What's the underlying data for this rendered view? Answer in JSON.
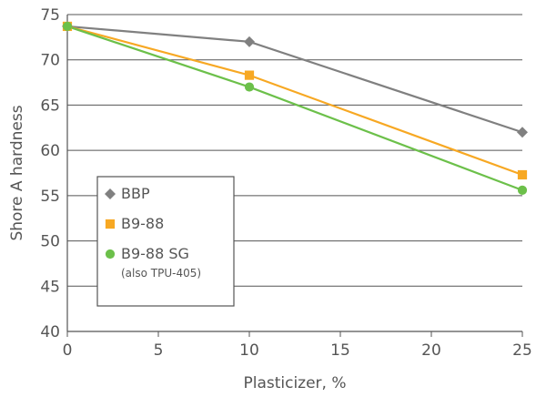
{
  "chart_data": {
    "type": "line",
    "title": "",
    "xlabel": "Plasticizer, %",
    "ylabel": "Shore A hardness",
    "xlim": [
      0,
      25
    ],
    "ylim": [
      40,
      75
    ],
    "x_ticks": [
      "0",
      "5",
      "10",
      "15",
      "20",
      "25"
    ],
    "y_ticks": [
      "40",
      "45",
      "50",
      "55",
      "60",
      "65",
      "70",
      "75"
    ],
    "grid": "horizontal",
    "legend_placement": "lower-left",
    "series": [
      {
        "name": "BBP",
        "note": "",
        "color": "#808080",
        "marker": "diamond",
        "x": [
          0,
          10,
          25
        ],
        "y": [
          73.7,
          72.0,
          62.0
        ]
      },
      {
        "name": "B9-88",
        "note": "",
        "color": "#F7A823",
        "marker": "square",
        "x": [
          0,
          10,
          25
        ],
        "y": [
          73.7,
          68.3,
          57.3
        ]
      },
      {
        "name": "B9-88 SG",
        "note": "(also TPU-405)",
        "color": "#6CC04A",
        "marker": "circle",
        "x": [
          0,
          10,
          25
        ],
        "y": [
          73.7,
          67.0,
          55.6
        ]
      }
    ]
  }
}
